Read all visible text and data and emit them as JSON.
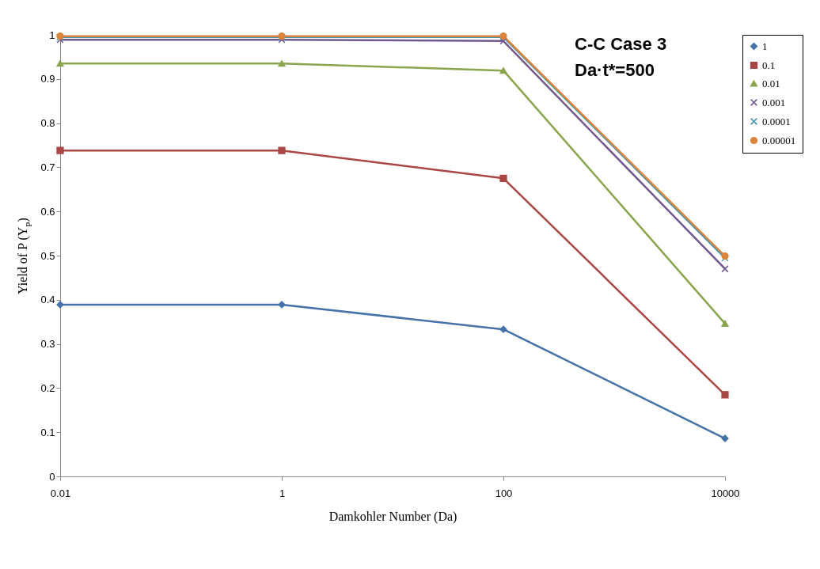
{
  "chart_data": {
    "type": "line",
    "xlabel": "Damkohler Number  (Da)",
    "ylabel": "Yield of P (Y$_{P}$)",
    "annotations": [
      "C-C Case 3",
      "Da·t*=500"
    ],
    "x": [
      0.01,
      1,
      100,
      10000
    ],
    "log": "x",
    "xlim": [
      0.01,
      10000
    ],
    "xticks": [
      0.01,
      1,
      100,
      10000
    ],
    "ylim": [
      0,
      1
    ],
    "yticks": [
      0,
      0.1,
      0.2,
      0.3,
      0.4,
      0.5,
      0.6,
      0.7,
      0.8,
      0.9,
      1
    ],
    "grid": false,
    "legend": "top right",
    "line_style": "solid",
    "series": [
      {
        "name": "1",
        "color": "#4572a7",
        "marker": "diamond",
        "values": [
          0.389,
          0.389,
          0.333,
          0.086
        ]
      },
      {
        "name": "0.1",
        "color": "#aa4643",
        "marker": "square",
        "values": [
          0.738,
          0.738,
          0.675,
          0.185
        ]
      },
      {
        "name": "0.01",
        "color": "#89a54e",
        "marker": "triangle",
        "values": [
          0.935,
          0.935,
          0.919,
          0.346
        ]
      },
      {
        "name": "0.001",
        "color": "#71588f",
        "marker": "cross",
        "values": [
          0.989,
          0.989,
          0.986,
          0.47
        ]
      },
      {
        "name": "0.0001",
        "color": "#4198af",
        "marker": "cross",
        "values": [
          0.995,
          0.995,
          0.995,
          0.495
        ]
      },
      {
        "name": "0.00001",
        "color": "#db843d",
        "marker": "circle",
        "values": [
          0.997,
          0.997,
          0.997,
          0.499
        ]
      }
    ]
  }
}
